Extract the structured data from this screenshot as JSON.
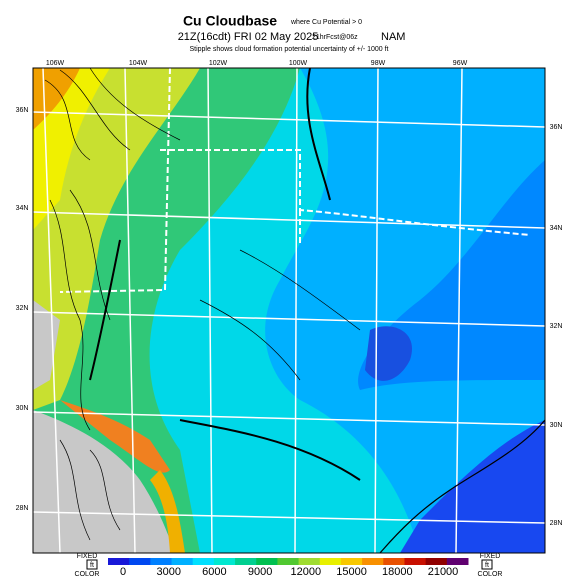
{
  "header": {
    "title": "Cu Cloudbase",
    "title_note": "where Cu Potential > 0",
    "valid": "21Z(16cdt) FRI 02 May 2025",
    "forecast": "21hrFcst@06z",
    "model": "NAM",
    "subtitle": "Stipple shows cloud formation potential uncertainty of +/- 1000 ft"
  },
  "map": {
    "longitudes": [
      "106W",
      "104W",
      "102W",
      "100W",
      "98W",
      "96W"
    ],
    "latitudes_left": [
      "36N",
      "34N",
      "32N",
      "30N",
      "28N"
    ],
    "latitudes_right": [
      "36N",
      "34N",
      "32N",
      "30N",
      "28N"
    ]
  },
  "colorbar": {
    "ticks": [
      0,
      3000,
      6000,
      9000,
      12000,
      15000,
      18000,
      21000
    ],
    "colors": [
      "#1818d8",
      "#0048f0",
      "#0080ff",
      "#00b0ff",
      "#00e0ff",
      "#00e8d0",
      "#00d090",
      "#00c050",
      "#50c830",
      "#a0dc30",
      "#e8f000",
      "#f8c800",
      "#f89000",
      "#e85000",
      "#c81000",
      "#900000",
      "#600070"
    ],
    "left_top": "FIXED",
    "left_mid": "ft",
    "left_bottom": "COLOR",
    "right_top": "FIXED",
    "right_mid": "ft",
    "right_bottom": "COLOR"
  }
}
